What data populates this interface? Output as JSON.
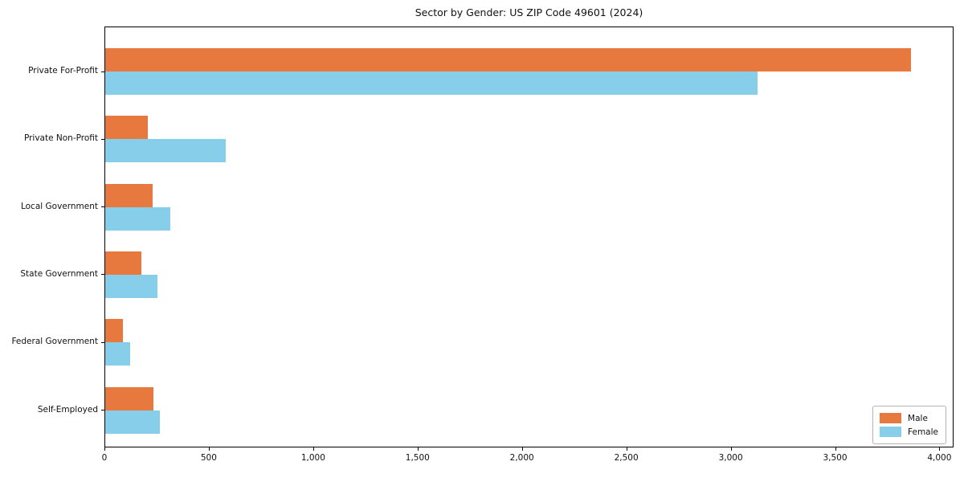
{
  "chart_data": {
    "type": "bar",
    "orientation": "horizontal",
    "title": "Sector by Gender: US ZIP Code 49601 (2024)",
    "categories": [
      "Private For-Profit",
      "Private Non-Profit",
      "Local Government",
      "State Government",
      "Federal Government",
      "Self-Employed"
    ],
    "series": [
      {
        "name": "Male",
        "color": "#E8793E",
        "values": [
          3860,
          205,
          225,
          172,
          85,
          230
        ]
      },
      {
        "name": "Female",
        "color": "#87CEEB",
        "values": [
          3123,
          578,
          310,
          250,
          118,
          260
        ]
      }
    ],
    "xlabel": "",
    "ylabel": "",
    "xlim": [
      0,
      4060
    ],
    "xticks": [
      0,
      500,
      1000,
      1500,
      2000,
      2500,
      3000,
      3500,
      4000
    ],
    "xtick_labels": [
      "0",
      "500",
      "1,000",
      "1,500",
      "2,000",
      "2,500",
      "3,000",
      "3,500",
      "4,000"
    ],
    "grid": false,
    "legend_position": "lower right"
  }
}
